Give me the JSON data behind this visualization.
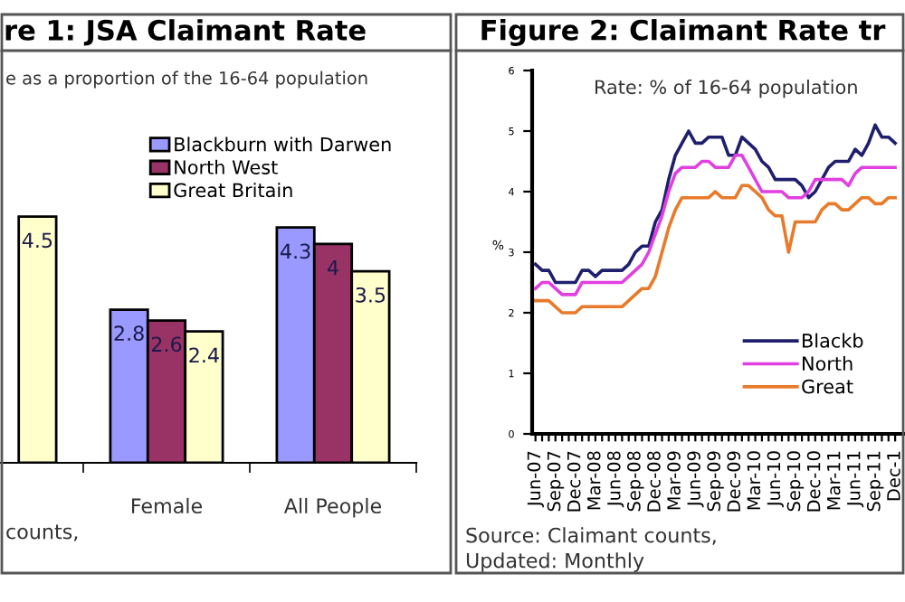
{
  "chart_data": [
    {
      "type": "bar",
      "title": "re 1: JSA Claimant Rate",
      "subtitle": "e as a proportion of the 16-64 population",
      "categories": [
        null,
        "Female",
        "All People"
      ],
      "series": [
        {
          "name": "Blackburn with Darwen",
          "color": "#9999ff",
          "values": [
            null,
            2.8,
            4.3
          ],
          "value_labels": [
            null,
            "2.8",
            "4.3"
          ]
        },
        {
          "name": "North West",
          "color": "#993366",
          "values": [
            null,
            2.6,
            4
          ],
          "value_labels": [
            null,
            "2.6",
            "4"
          ]
        },
        {
          "name": "Great Britain",
          "color": "#ffffcc",
          "values": [
            4.5,
            2.4,
            3.5
          ],
          "value_labels": [
            "4.5",
            "2.4",
            "3.5"
          ]
        }
      ],
      "tick_labels": "x",
      "grid": false,
      "legend": "top right",
      "annotations": [
        "counts,"
      ]
    },
    {
      "type": "line",
      "title": "Figure 2: Claimant Rate tr",
      "ylabel": "%",
      "categories": [
        "Jun-07",
        null,
        null,
        "Sep-07",
        null,
        null,
        "Dec-07",
        null,
        null,
        "Mar-08",
        null,
        null,
        "Jun-08",
        null,
        null,
        "Sep-08",
        null,
        null,
        "Dec-08",
        null,
        null,
        "Mar-09",
        null,
        null,
        "Jun-09",
        null,
        null,
        "Sep-09",
        null,
        null,
        "Dec-09",
        null,
        null,
        "Mar-10",
        null,
        null,
        "Jun-10",
        null,
        null,
        "Sep-10",
        null,
        null,
        "Dec-10",
        null,
        null,
        "Mar-11",
        null,
        null,
        "Jun-11",
        null,
        null,
        "Sep-11",
        null,
        null,
        "Dec-1"
      ],
      "series": [
        {
          "name": "Blackb",
          "color": "#1f1f6e",
          "values": [
            2.8,
            2.7,
            2.7,
            2.5,
            2.5,
            2.5,
            2.5,
            2.7,
            2.7,
            2.6,
            2.7,
            2.7,
            2.7,
            2.7,
            2.8,
            3.0,
            3.1,
            3.1,
            3.5,
            3.7,
            4.2,
            4.6,
            4.8,
            5.0,
            4.8,
            4.8,
            4.9,
            4.9,
            4.9,
            4.6,
            4.6,
            4.9,
            4.8,
            4.7,
            4.5,
            4.4,
            4.2,
            4.2,
            4.2,
            4.2,
            4.1,
            3.9,
            4.0,
            4.2,
            4.4,
            4.5,
            4.5,
            4.5,
            4.7,
            4.6,
            4.8,
            5.1,
            4.9,
            4.9,
            4.8
          ]
        },
        {
          "name": "North ",
          "color": "#e040e0",
          "values": [
            2.4,
            2.5,
            2.5,
            2.4,
            2.3,
            2.3,
            2.3,
            2.5,
            2.5,
            2.5,
            2.5,
            2.5,
            2.5,
            2.5,
            2.6,
            2.7,
            2.8,
            3.0,
            3.3,
            3.6,
            4.0,
            4.3,
            4.4,
            4.4,
            4.4,
            4.5,
            4.5,
            4.4,
            4.4,
            4.4,
            4.6,
            4.6,
            4.4,
            4.2,
            4.0,
            4.0,
            4.0,
            4.0,
            3.9,
            3.9,
            3.9,
            4.0,
            4.2,
            4.2,
            4.2,
            4.2,
            4.2,
            4.1,
            4.3,
            4.4,
            4.4,
            4.4,
            4.4,
            4.4,
            4.4
          ]
        },
        {
          "name": "Great ",
          "color": "#e87a2a",
          "values": [
            2.2,
            2.2,
            2.2,
            2.1,
            2.0,
            2.0,
            2.0,
            2.1,
            2.1,
            2.1,
            2.1,
            2.1,
            2.1,
            2.1,
            2.2,
            2.3,
            2.4,
            2.4,
            2.6,
            3.0,
            3.4,
            3.7,
            3.9,
            3.9,
            3.9,
            3.9,
            3.9,
            4.0,
            3.9,
            3.9,
            3.9,
            4.1,
            4.1,
            4.0,
            3.9,
            3.7,
            3.6,
            3.6,
            3.0,
            3.5,
            3.5,
            3.5,
            3.5,
            3.7,
            3.8,
            3.8,
            3.7,
            3.7,
            3.8,
            3.9,
            3.9,
            3.8,
            3.8,
            3.9,
            3.9
          ]
        }
      ],
      "ylim": [
        0,
        6
      ],
      "yticks": [
        0,
        1,
        2,
        3,
        4,
        5,
        6
      ],
      "grid": false,
      "legend": "bottom right",
      "marker": "none",
      "line_style": "solid",
      "annotations": [
        "Rate: % of 16-64 population",
        "Source: Claimant counts,",
        "Updated: Monthly"
      ]
    }
  ]
}
